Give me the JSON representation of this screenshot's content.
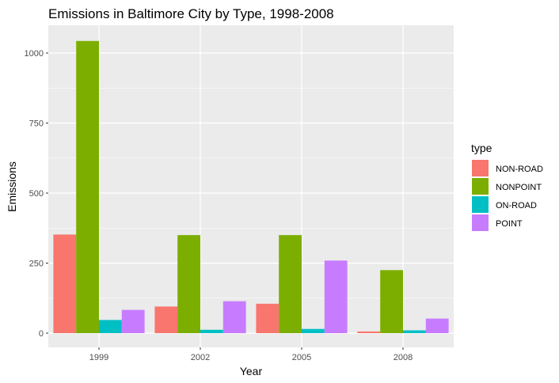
{
  "chart_data": {
    "type": "bar",
    "title": "Emissions in Baltimore City by Type, 1998-2008",
    "xlabel": "Year",
    "ylabel": "Emissions",
    "categories": [
      "1999",
      "2002",
      "2005",
      "2008"
    ],
    "ylim": [
      0,
      1090
    ],
    "yticks": [
      0,
      250,
      500,
      750,
      1000
    ],
    "ytick_labels": [
      "0",
      "250",
      "500",
      "750",
      "1000"
    ],
    "grid": true,
    "legend_title": "type",
    "legend_position": "right",
    "series": [
      {
        "name": "NON-ROAD",
        "color": "#F8766D",
        "values": [
          352,
          95,
          105,
          6
        ]
      },
      {
        "name": "NONPOINT",
        "color": "#7CAE00",
        "values": [
          1043,
          350,
          350,
          225
        ]
      },
      {
        "name": "ON-ROAD",
        "color": "#00BFC4",
        "values": [
          47,
          12,
          15,
          10
        ]
      },
      {
        "name": "POINT",
        "color": "#C77CFF",
        "values": [
          83,
          114,
          259,
          52
        ]
      }
    ]
  }
}
